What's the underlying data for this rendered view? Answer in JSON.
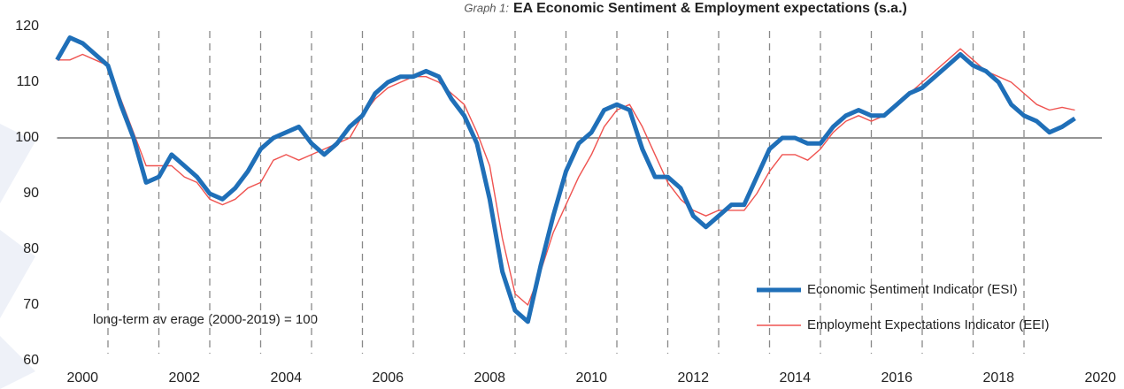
{
  "chart_data": {
    "type": "line",
    "title_label": "Graph 1:",
    "title": "EA Economic Sentiment & Employment expectations (s.a.)",
    "annotation": "long-term av erage (2000-2019) = 100",
    "hline": 100,
    "x": [
      2000,
      2000.25,
      2000.5,
      2000.75,
      2001,
      2001.25,
      2001.5,
      2001.75,
      2002,
      2002.25,
      2002.5,
      2002.75,
      2003,
      2003.25,
      2003.5,
      2003.75,
      2004,
      2004.25,
      2004.5,
      2004.75,
      2005,
      2005.25,
      2005.5,
      2005.75,
      2006,
      2006.25,
      2006.5,
      2006.75,
      2007,
      2007.25,
      2007.5,
      2007.75,
      2008,
      2008.25,
      2008.5,
      2008.75,
      2009,
      2009.25,
      2009.5,
      2009.75,
      2010,
      2010.25,
      2010.5,
      2010.75,
      2011,
      2011.25,
      2011.5,
      2011.75,
      2012,
      2012.25,
      2012.5,
      2012.75,
      2013,
      2013.25,
      2013.5,
      2013.75,
      2014,
      2014.25,
      2014.5,
      2014.75,
      2015,
      2015.25,
      2015.5,
      2015.75,
      2016,
      2016.25,
      2016.5,
      2016.75,
      2017,
      2017.25,
      2017.5,
      2017.75,
      2018,
      2018.25,
      2018.5,
      2018.75,
      2019,
      2019.25,
      2019.5,
      2019.75,
      2020
    ],
    "series": [
      {
        "name": "Economic Sentiment Indicator (ESI)",
        "color": "#1f6fb8",
        "values": [
          114,
          118,
          117,
          115,
          113,
          106,
          100,
          92,
          93,
          97,
          95,
          93,
          90,
          89,
          91,
          94,
          98,
          100,
          101,
          102,
          99,
          97,
          99,
          102,
          104,
          108,
          110,
          111,
          111,
          112,
          111,
          107,
          104,
          99,
          89,
          76,
          69,
          67,
          77,
          86,
          94,
          99,
          101,
          105,
          106,
          105,
          98,
          93,
          93,
          91,
          86,
          84,
          86,
          88,
          88,
          93,
          98,
          100,
          100,
          99,
          99,
          102,
          104,
          105,
          104,
          104,
          106,
          108,
          109,
          111,
          113,
          115,
          113,
          112,
          110,
          106,
          104,
          103,
          101,
          102,
          103.5
        ]
      },
      {
        "name": "Employment Expectations Indicator (EEI)",
        "color": "#ef5350",
        "values": [
          114,
          114,
          115,
          114,
          113,
          107,
          101,
          95,
          95,
          95,
          93,
          92,
          89,
          88,
          89,
          91,
          92,
          96,
          97,
          96,
          97,
          98,
          99,
          100,
          104,
          107,
          109,
          110,
          111,
          111,
          110,
          108,
          106,
          101,
          95,
          82,
          72,
          70,
          76,
          83,
          88,
          93,
          97,
          102,
          105,
          106,
          102,
          97,
          92,
          89,
          87,
          86,
          87,
          87,
          87,
          90,
          94,
          97,
          97,
          96,
          98,
          101,
          103,
          104,
          103,
          104,
          106,
          108,
          110,
          112,
          114,
          116,
          114,
          112,
          111,
          110,
          108,
          106,
          105,
          105.5,
          105
        ]
      }
    ],
    "xlim": [
      2000,
      2021
    ],
    "xticks": [
      {
        "value": 2000.5,
        "label": "2000"
      },
      {
        "value": 2002.5,
        "label": "2002"
      },
      {
        "value": 2004.5,
        "label": "2004"
      },
      {
        "value": 2006.5,
        "label": "2006"
      },
      {
        "value": 2008.5,
        "label": "2008"
      },
      {
        "value": 2010.5,
        "label": "2010"
      },
      {
        "value": 2012.5,
        "label": "2012"
      },
      {
        "value": 2014.5,
        "label": "2014"
      },
      {
        "value": 2016.5,
        "label": "2016"
      },
      {
        "value": 2018.5,
        "label": "2018"
      },
      {
        "value": 2020.5,
        "label": "2020"
      }
    ],
    "xgrid": [
      2001,
      2002,
      2003,
      2004,
      2005,
      2006,
      2007,
      2008,
      2009,
      2010,
      2011,
      2012,
      2013,
      2014,
      2015,
      2016,
      2017,
      2018,
      2019
    ],
    "ylim": [
      60,
      120
    ],
    "yticks": [
      60,
      70,
      80,
      90,
      100,
      110,
      120
    ],
    "legend": "lower right"
  }
}
